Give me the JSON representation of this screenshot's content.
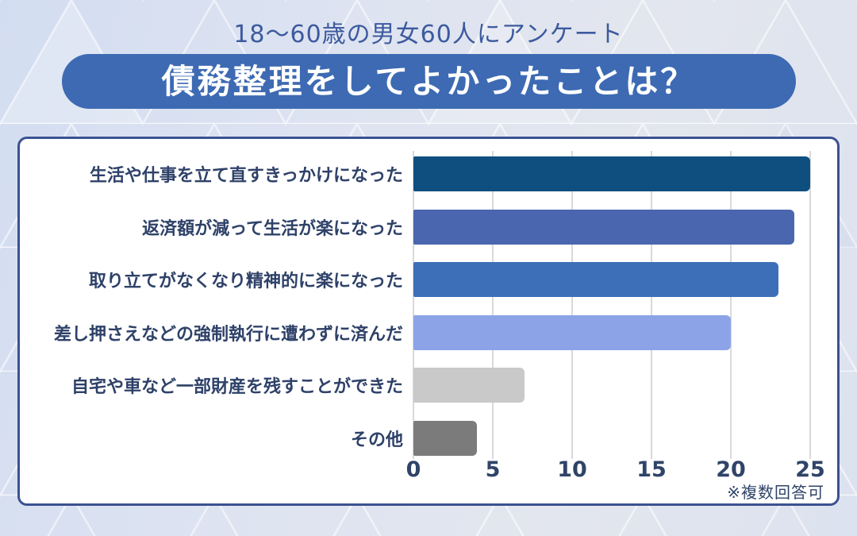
{
  "header": {
    "subtitle": "18〜60歳の男女60人にアンケート",
    "title": "債務整理をしてよかったことは？"
  },
  "colors": {
    "background": "#dce3f1",
    "title_pill": "#3d6ab3",
    "title_text": "#ffffff",
    "subtitle_text": "#3c5a9e",
    "panel_border": "#3b5290",
    "panel_background": "#ffffff",
    "label_text": "#2e4168",
    "tick_text": "#2f4468",
    "grid_line": "#d9d9d9"
  },
  "chart_data": {
    "type": "bar",
    "orientation": "horizontal",
    "title": "債務整理をしてよかったことは？",
    "subtitle": "18〜60歳の男女60人にアンケート",
    "categories": [
      "生活や仕事を立て直すきっかけになった",
      "返済額が減って生活が楽になった",
      "取り立てがなくなり精神的に楽になった",
      "差し押さえなどの強制執行に遭わずに済んだ",
      "自宅や車など一部財産を残すことができた",
      "その他"
    ],
    "values": [
      25,
      24,
      23,
      20,
      7,
      4
    ],
    "bar_colors": [
      "#0e4f80",
      "#4a66ae",
      "#3d6fb8",
      "#8ca3e8",
      "#c9c9c9",
      "#7b7b7b"
    ],
    "x_ticks": [
      0,
      5,
      10,
      15,
      20,
      25
    ],
    "xlim": [
      0,
      25
    ],
    "grid": true,
    "legend": false,
    "note": "※複数回答可"
  }
}
